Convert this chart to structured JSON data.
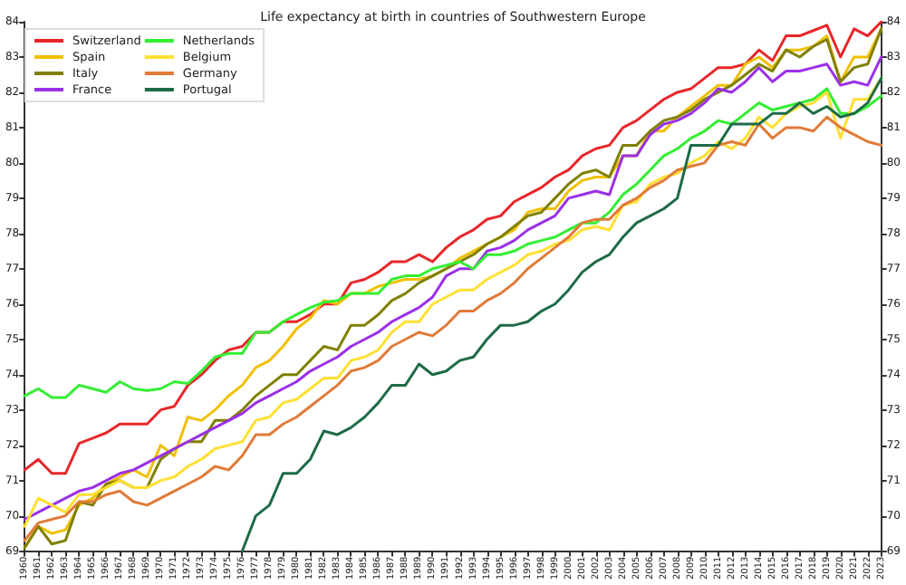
{
  "chart_data": {
    "type": "line",
    "title": "Life expectancy at birth in countries of Southwestern Europe",
    "x": [
      1960,
      1961,
      1962,
      1963,
      1964,
      1965,
      1966,
      1967,
      1968,
      1969,
      1970,
      1971,
      1972,
      1973,
      1974,
      1975,
      1976,
      1977,
      1978,
      1979,
      1980,
      1981,
      1982,
      1983,
      1984,
      1985,
      1986,
      1987,
      1988,
      1989,
      1990,
      1991,
      1992,
      1993,
      1994,
      1995,
      1996,
      1997,
      1998,
      1999,
      2000,
      2001,
      2002,
      2003,
      2004,
      2005,
      2006,
      2007,
      2008,
      2009,
      2010,
      2011,
      2012,
      2013,
      2014,
      2015,
      2016,
      2017,
      2018,
      2019,
      2020,
      2021,
      2022,
      2023
    ],
    "series": [
      {
        "name": "Switzerland",
        "color": "#e8262a",
        "values": [
          71.3,
          71.6,
          71.2,
          71.2,
          72.05,
          72.2,
          72.35,
          72.6,
          72.6,
          72.6,
          73.0,
          73.1,
          73.7,
          74.0,
          74.4,
          74.7,
          74.8,
          75.2,
          75.2,
          75.5,
          75.5,
          75.7,
          76.0,
          76.0,
          76.6,
          76.7,
          76.9,
          77.2,
          77.2,
          77.4,
          77.2,
          77.6,
          77.9,
          78.1,
          78.4,
          78.5,
          78.9,
          79.1,
          79.3,
          79.6,
          79.8,
          80.2,
          80.4,
          80.5,
          81.0,
          81.2,
          81.5,
          81.8,
          82.0,
          82.1,
          82.4,
          82.7,
          82.7,
          82.8,
          83.2,
          82.9,
          83.6,
          83.6,
          83.75,
          83.9,
          83.0,
          83.8,
          83.6,
          84.0
        ]
      },
      {
        "name": "Spain",
        "color": "#f0c000",
        "values": [
          69.1,
          69.7,
          69.5,
          69.6,
          70.3,
          70.5,
          70.9,
          71.1,
          71.3,
          71.1,
          72.0,
          71.7,
          72.8,
          72.7,
          73.0,
          73.4,
          73.7,
          74.2,
          74.4,
          74.8,
          75.3,
          75.6,
          76.1,
          76.0,
          76.3,
          76.3,
          76.5,
          76.6,
          76.7,
          76.7,
          76.8,
          77.0,
          77.3,
          77.5,
          77.7,
          77.9,
          78.1,
          78.6,
          78.7,
          78.7,
          79.2,
          79.5,
          79.6,
          79.6,
          80.2,
          80.2,
          80.9,
          80.9,
          81.3,
          81.6,
          81.9,
          82.2,
          82.2,
          82.8,
          83.0,
          82.7,
          83.2,
          83.2,
          83.3,
          83.6,
          82.3,
          83.0,
          83.0,
          83.8
        ]
      },
      {
        "name": "Italy",
        "color": "#808000",
        "values": [
          69.1,
          69.7,
          69.2,
          69.3,
          70.4,
          70.3,
          70.9,
          71.0,
          70.8,
          70.8,
          71.6,
          71.9,
          72.1,
          72.1,
          72.7,
          72.7,
          73.0,
          73.4,
          73.7,
          74.0,
          74.0,
          74.4,
          74.8,
          74.7,
          75.4,
          75.4,
          75.7,
          76.1,
          76.3,
          76.6,
          76.8,
          77.0,
          77.2,
          77.4,
          77.7,
          77.9,
          78.2,
          78.5,
          78.6,
          79.0,
          79.4,
          79.7,
          79.8,
          79.6,
          80.5,
          80.5,
          80.9,
          81.2,
          81.3,
          81.5,
          81.8,
          82.0,
          82.2,
          82.5,
          82.8,
          82.6,
          83.2,
          83.0,
          83.3,
          83.5,
          82.3,
          82.7,
          82.8,
          83.8
        ]
      },
      {
        "name": "France",
        "color": "#9b30e8",
        "values": [
          69.9,
          70.1,
          70.3,
          70.5,
          70.7,
          70.8,
          71.0,
          71.2,
          71.3,
          71.5,
          71.7,
          71.9,
          72.1,
          72.3,
          72.5,
          72.7,
          72.9,
          73.2,
          73.4,
          73.6,
          73.8,
          74.1,
          74.3,
          74.5,
          74.8,
          75.0,
          75.2,
          75.5,
          75.7,
          75.9,
          76.2,
          76.8,
          77.0,
          77.0,
          77.5,
          77.6,
          77.8,
          78.1,
          78.3,
          78.5,
          79.0,
          79.1,
          79.2,
          79.1,
          80.2,
          80.2,
          80.8,
          81.1,
          81.2,
          81.4,
          81.7,
          82.1,
          82.0,
          82.3,
          82.7,
          82.3,
          82.6,
          82.6,
          82.7,
          82.8,
          82.2,
          82.3,
          82.2,
          83.0
        ]
      },
      {
        "name": "Netherlands",
        "color": "#33ee33",
        "values": [
          73.4,
          73.6,
          73.35,
          73.35,
          73.7,
          73.6,
          73.5,
          73.8,
          73.6,
          73.55,
          73.6,
          73.8,
          73.75,
          74.1,
          74.5,
          74.6,
          74.6,
          75.2,
          75.2,
          75.5,
          75.7,
          75.9,
          76.05,
          76.1,
          76.3,
          76.3,
          76.3,
          76.7,
          76.8,
          76.8,
          77.0,
          77.1,
          77.2,
          77.0,
          77.4,
          77.4,
          77.5,
          77.7,
          77.8,
          77.9,
          78.1,
          78.3,
          78.3,
          78.6,
          79.1,
          79.4,
          79.8,
          80.2,
          80.4,
          80.7,
          80.9,
          81.2,
          81.1,
          81.4,
          81.7,
          81.5,
          81.6,
          81.7,
          81.8,
          82.1,
          81.4,
          81.4,
          81.6,
          81.9
        ]
      },
      {
        "name": "Belgium",
        "color": "#ffe033",
        "values": [
          69.7,
          70.5,
          70.3,
          70.1,
          70.6,
          70.6,
          70.8,
          71.0,
          70.8,
          70.8,
          71.0,
          71.1,
          71.4,
          71.6,
          71.9,
          72.0,
          72.1,
          72.7,
          72.8,
          73.2,
          73.3,
          73.6,
          73.9,
          73.9,
          74.4,
          74.5,
          74.7,
          75.2,
          75.5,
          75.5,
          76.0,
          76.2,
          76.4,
          76.4,
          76.7,
          76.9,
          77.1,
          77.4,
          77.5,
          77.7,
          77.8,
          78.1,
          78.2,
          78.1,
          78.8,
          78.9,
          79.4,
          79.6,
          79.7,
          80.0,
          80.2,
          80.6,
          80.4,
          80.7,
          81.3,
          81.0,
          81.4,
          81.6,
          81.7,
          82.0,
          80.7,
          81.8,
          81.8,
          82.4
        ]
      },
      {
        "name": "Germany",
        "color": "#e07b39",
        "values": [
          69.3,
          69.8,
          69.9,
          70.0,
          70.4,
          70.4,
          70.6,
          70.7,
          70.4,
          70.3,
          70.5,
          70.7,
          70.9,
          71.1,
          71.4,
          71.3,
          71.7,
          72.3,
          72.3,
          72.6,
          72.8,
          73.1,
          73.4,
          73.7,
          74.1,
          74.2,
          74.4,
          74.8,
          75.0,
          75.2,
          75.1,
          75.4,
          75.8,
          75.8,
          76.1,
          76.3,
          76.6,
          77.0,
          77.3,
          77.6,
          77.9,
          78.3,
          78.4,
          78.4,
          78.8,
          79.0,
          79.3,
          79.5,
          79.8,
          79.9,
          80.0,
          80.5,
          80.6,
          80.5,
          81.1,
          80.7,
          81.0,
          81.0,
          80.9,
          81.3,
          81.0,
          80.8,
          80.6,
          80.5
        ]
      },
      {
        "name": "Portugal",
        "color": "#1e6b46",
        "values": [
          null,
          null,
          null,
          null,
          null,
          null,
          null,
          null,
          null,
          null,
          null,
          null,
          null,
          null,
          null,
          null,
          69.0,
          70.0,
          70.3,
          71.2,
          71.2,
          71.6,
          72.4,
          72.3,
          72.5,
          72.8,
          73.2,
          73.7,
          73.7,
          74.3,
          74.0,
          74.1,
          74.4,
          74.5,
          75.0,
          75.4,
          75.4,
          75.5,
          75.8,
          76.0,
          76.4,
          76.9,
          77.2,
          77.4,
          77.9,
          78.3,
          78.5,
          78.7,
          79.0,
          80.5,
          80.5,
          80.5,
          81.1,
          81.1,
          81.1,
          81.4,
          81.4,
          81.7,
          81.4,
          81.6,
          81.3,
          81.4,
          81.7,
          82.4
        ]
      }
    ],
    "xlim": [
      1960,
      2023
    ],
    "xticks": [
      1960,
      1961,
      1962,
      1963,
      1964,
      1965,
      1966,
      1967,
      1968,
      1969,
      1970,
      1971,
      1972,
      1973,
      1974,
      1975,
      1976,
      1977,
      1978,
      1979,
      1980,
      1981,
      1982,
      1983,
      1984,
      1985,
      1986,
      1987,
      1988,
      1989,
      1990,
      1991,
      1992,
      1993,
      1994,
      1995,
      1996,
      1997,
      1998,
      1999,
      2000,
      2001,
      2002,
      2003,
      2004,
      2005,
      2006,
      2007,
      2008,
      2009,
      2010,
      2011,
      2012,
      2013,
      2014,
      2015,
      2016,
      2017,
      2018,
      2019,
      2020,
      2021,
      2022,
      2023
    ],
    "ylim": [
      69,
      84
    ],
    "yticks": [
      69,
      70,
      71,
      72,
      73,
      74,
      75,
      76,
      77,
      78,
      79,
      80,
      81,
      82,
      83,
      84
    ],
    "y2lim": [
      69,
      84
    ],
    "y2ticks": [
      69,
      70,
      71,
      72,
      73,
      74,
      75,
      76,
      77,
      78,
      79,
      80,
      81,
      82,
      83,
      84
    ],
    "legend": "top left",
    "grid": false,
    "marker": "none",
    "line_style": "solid"
  }
}
